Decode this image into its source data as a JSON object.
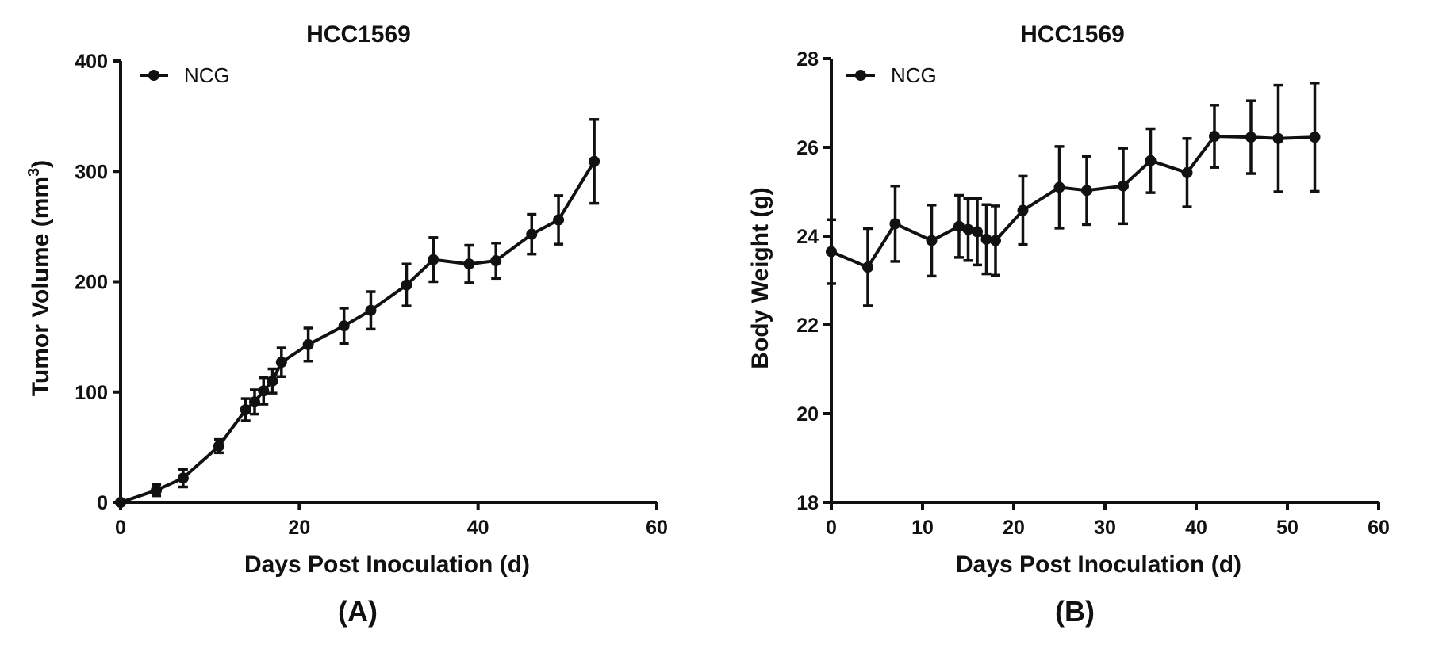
{
  "panels": [
    {
      "panel_label": "(A)",
      "chart_data": {
        "type": "line",
        "title": "HCC1569",
        "xlabel": "Days Post Inoculation (d)",
        "ylabel": "Tumor Volume (mm",
        "ylabel_superscript": "3",
        "ylabel_suffix": ")",
        "xlim": [
          0,
          60
        ],
        "ylim": [
          0,
          400
        ],
        "xticks": [
          0,
          20,
          40,
          60
        ],
        "yticks": [
          0,
          100,
          200,
          300,
          400
        ],
        "grid": false,
        "legend_position": "top-left",
        "series": [
          {
            "name": "NCG",
            "x": [
              0,
              4,
              7,
              11,
              14,
              15,
              16,
              17,
              18,
              21,
              25,
              28,
              32,
              35,
              39,
              42,
              46,
              49,
              53
            ],
            "y": [
              0,
              11,
              22,
              51,
              84,
              91,
              101,
              110,
              127,
              143,
              160,
              174,
              197,
              220,
              216,
              219,
              243,
              256,
              309
            ],
            "error": [
              0,
              5,
              8,
              6,
              10,
              11,
              12,
              11,
              13,
              15,
              16,
              17,
              19,
              20,
              17,
              16,
              18,
              22,
              38
            ]
          }
        ]
      }
    },
    {
      "panel_label": "(B)",
      "chart_data": {
        "type": "line",
        "title": "HCC1569",
        "xlabel": "Days Post Inoculation (d)",
        "ylabel": "Body Weight (g)",
        "xlim": [
          0,
          60
        ],
        "ylim": [
          18,
          28
        ],
        "xticks": [
          0,
          10,
          20,
          30,
          40,
          50,
          60
        ],
        "yticks": [
          18,
          20,
          22,
          24,
          26,
          28
        ],
        "grid": false,
        "legend_position": "top-left",
        "series": [
          {
            "name": "NCG",
            "x": [
              0,
              4,
              7,
              11,
              14,
              15,
              16,
              17,
              18,
              21,
              25,
              28,
              32,
              35,
              39,
              42,
              46,
              49,
              53
            ],
            "y": [
              23.65,
              23.3,
              24.28,
              23.9,
              24.22,
              24.15,
              24.1,
              23.93,
              23.9,
              24.58,
              25.1,
              25.03,
              25.13,
              25.7,
              25.43,
              26.25,
              26.23,
              26.2,
              26.23
            ],
            "error": [
              0.72,
              0.87,
              0.85,
              0.8,
              0.7,
              0.7,
              0.75,
              0.78,
              0.78,
              0.77,
              0.92,
              0.77,
              0.85,
              0.72,
              0.77,
              0.7,
              0.82,
              1.2,
              1.22
            ]
          }
        ]
      }
    }
  ],
  "style": {
    "line_color": "#111111",
    "background": "#ffffff"
  }
}
